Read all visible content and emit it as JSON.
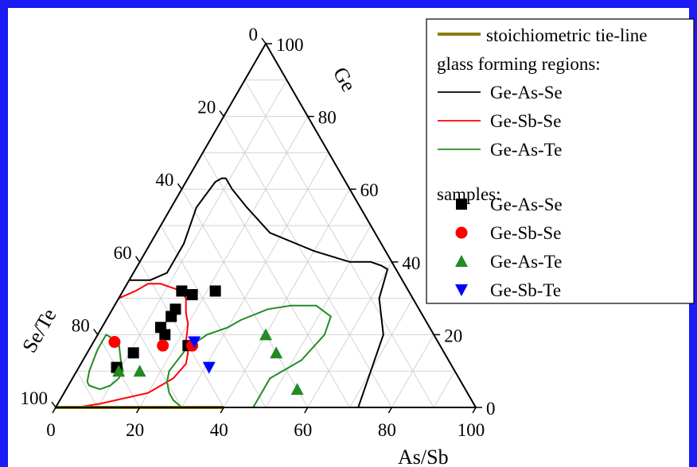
{
  "chart_data": {
    "type": "scatter",
    "subtype": "ternary",
    "axes": {
      "bottom": {
        "label": "As/Sb",
        "ticks": [
          "0",
          "20",
          "40",
          "60",
          "80",
          "100"
        ]
      },
      "right": {
        "label": "Ge",
        "ticks": [
          "0",
          "20",
          "40",
          "60",
          "80",
          "100"
        ]
      },
      "left": {
        "label": "Se/Te",
        "ticks": [
          "0",
          "20",
          "40",
          "60",
          "80",
          "100"
        ]
      }
    },
    "grid": true,
    "legend_position": "top-right",
    "legend": {
      "tieline": "stoichiometric tie-line",
      "regions_heading": "glass forming regions:",
      "samples_heading": "samples:"
    },
    "tieline": {
      "color": "#8c7d10",
      "points": [
        [
          0,
          40,
          60
        ],
        [
          0,
          0,
          100
        ]
      ],
      "_order": "Ge, As/Sb, Se/Te"
    },
    "regions": [
      {
        "name": "Ge-As-Se",
        "color": "#000000",
        "points": [
          [
            0,
            72,
            28
          ],
          [
            10,
            70,
            20
          ],
          [
            20,
            68,
            12
          ],
          [
            30,
            62,
            8
          ],
          [
            38,
            60,
            2
          ],
          [
            39,
            58,
            3
          ],
          [
            40,
            55,
            5
          ],
          [
            40,
            50,
            10
          ],
          [
            43,
            40,
            17
          ],
          [
            48,
            27,
            25
          ],
          [
            55,
            18,
            27
          ],
          [
            60,
            12,
            28
          ],
          [
            63,
            9,
            28
          ],
          [
            63,
            8,
            29
          ],
          [
            62,
            7,
            31
          ],
          [
            55,
            6,
            39
          ],
          [
            45,
            8,
            47
          ],
          [
            37,
            8,
            55
          ],
          [
            35,
            5,
            60
          ],
          [
            35,
            0,
            65
          ]
        ]
      },
      {
        "name": "Ge-Sb-Se",
        "color": "#ff0000",
        "points": [
          [
            0,
            0,
            100
          ],
          [
            0,
            5,
            95
          ],
          [
            1,
            10,
            89
          ],
          [
            4,
            20,
            76
          ],
          [
            8,
            24,
            68
          ],
          [
            12,
            25,
            63
          ],
          [
            15,
            24,
            61
          ],
          [
            18,
            22,
            60
          ],
          [
            23,
            20,
            57
          ],
          [
            26,
            18,
            56
          ],
          [
            30,
            16,
            54
          ],
          [
            32,
            14,
            54
          ],
          [
            33,
            11,
            56
          ],
          [
            34,
            8,
            58
          ],
          [
            34,
            5,
            61
          ],
          [
            32,
            3,
            65
          ],
          [
            30,
            0,
            70
          ]
        ]
      },
      {
        "name": "Ge-As-Te",
        "color": "#228b22",
        "groups": [
          [
            [
              7,
              4,
              89
            ],
            [
              10,
              3,
              87
            ],
            [
              16,
              2,
              82
            ],
            [
              20,
              2,
              78
            ],
            [
              18,
              6,
              76
            ],
            [
              13,
              9,
              78
            ],
            [
              10,
              11,
              79
            ],
            [
              8,
              11,
              81
            ],
            [
              6,
              10,
              84
            ],
            [
              5,
              8,
              87
            ],
            [
              6,
              5,
              89
            ],
            [
              7,
              4,
              89
            ]
          ],
          [
            [
              0,
              47,
              53
            ],
            [
              8,
              47,
              45
            ],
            [
              13,
              52,
              35
            ],
            [
              20,
              54,
              26
            ],
            [
              25,
              53,
              22
            ],
            [
              28,
              48,
              24
            ],
            [
              28,
              42,
              30
            ],
            [
              27,
              37,
              36
            ],
            [
              24,
              32,
              44
            ],
            [
              22,
              30,
              48
            ],
            [
              20,
              26,
              54
            ],
            [
              16,
              23,
              61
            ],
            [
              10,
              22,
              68
            ],
            [
              7,
              23,
              70
            ],
            [
              4,
              25,
              71
            ],
            [
              2,
              27,
              71
            ],
            [
              0,
              30,
              70
            ]
          ]
        ]
      }
    ],
    "series": [
      {
        "name": "Ge-As-Se",
        "marker": "square",
        "color": "#000000",
        "points": [
          [
            11,
            9,
            80
          ],
          [
            15,
            11,
            74
          ],
          [
            22,
            14,
            64
          ],
          [
            25,
            15,
            60
          ],
          [
            27,
            15,
            58
          ],
          [
            32,
            14,
            54
          ],
          [
            31,
            17,
            52
          ],
          [
            32,
            22,
            46
          ],
          [
            17,
            23,
            60
          ],
          [
            20,
            16,
            64
          ]
        ]
      },
      {
        "name": "Ge-Sb-Se",
        "marker": "circle",
        "color": "#ff0000",
        "points": [
          [
            18,
            5,
            77
          ],
          [
            17,
            17,
            66
          ],
          [
            17,
            24,
            59
          ]
        ]
      },
      {
        "name": "Ge-As-Te",
        "marker": "triangle-up",
        "color": "#228b22",
        "points": [
          [
            10,
            10,
            80
          ],
          [
            10,
            15,
            75
          ],
          [
            20,
            40,
            40
          ],
          [
            15,
            45,
            40
          ],
          [
            5,
            55,
            40
          ]
        ]
      },
      {
        "name": "Ge-Sb-Te",
        "marker": "triangle-down",
        "color": "#0000ff",
        "points": [
          [
            18,
            24,
            58
          ],
          [
            11,
            31,
            58
          ]
        ]
      }
    ]
  }
}
